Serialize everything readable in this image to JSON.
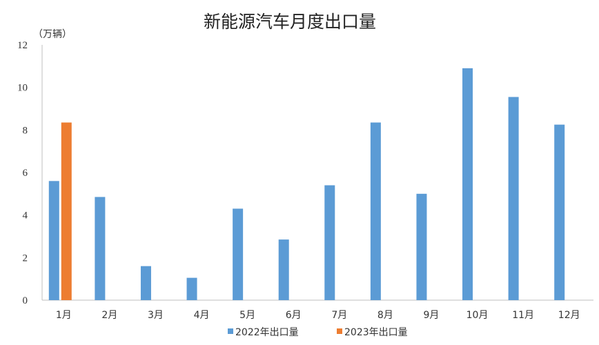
{
  "chart_data": {
    "type": "bar",
    "title": "新能源汽车月度出口量",
    "unit_label": "（万辆）",
    "categories": [
      "1月",
      "2月",
      "3月",
      "4月",
      "5月",
      "6月",
      "7月",
      "8月",
      "9月",
      "10月",
      "11月",
      "12月"
    ],
    "series": [
      {
        "name": "2022年出口量",
        "color": "#5b9bd5",
        "values": [
          5.6,
          4.85,
          1.6,
          1.05,
          4.3,
          2.85,
          5.4,
          8.35,
          5.0,
          10.9,
          9.55,
          8.25
        ]
      },
      {
        "name": "2023年出口量",
        "color": "#ed7d31",
        "values": [
          8.35,
          null,
          null,
          null,
          null,
          null,
          null,
          null,
          null,
          null,
          null,
          null
        ]
      }
    ],
    "ylim": [
      0,
      12
    ],
    "yticks": [
      0,
      2,
      4,
      6,
      8,
      10,
      12
    ],
    "grid": false,
    "legend_position": "bottom"
  }
}
